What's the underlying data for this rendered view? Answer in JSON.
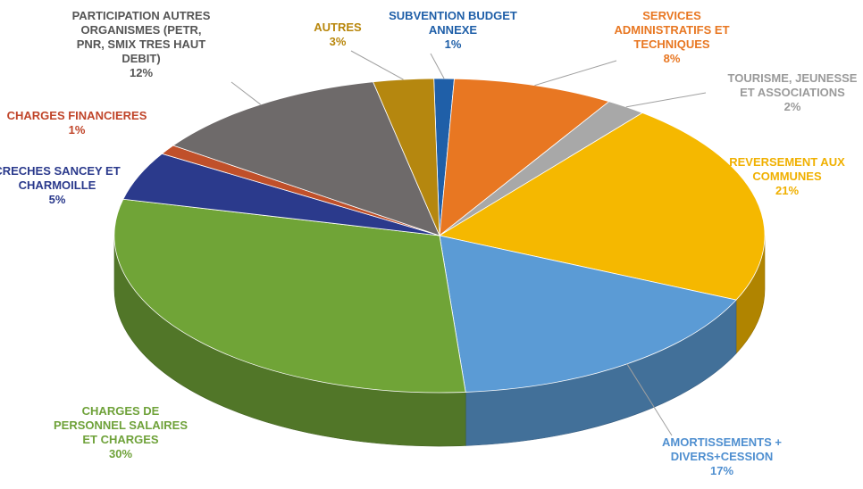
{
  "chart_data": {
    "type": "pie",
    "style": "3d",
    "slices": [
      {
        "label_lines": [
          "SUBVENTION  BUDGET",
          "ANNEXE"
        ],
        "value": 1,
        "value_label": "1%",
        "color": "#1f5fa8",
        "label_color": "#1f5fa8"
      },
      {
        "label_lines": [
          "SERVICES",
          "ADMINISTRATIFS ET",
          "TECHNIQUES"
        ],
        "value": 8,
        "value_label": "8%",
        "color": "#e87722",
        "label_color": "#e87722"
      },
      {
        "label_lines": [
          "TOURISME, JEUNESSE",
          "ET ASSOCIATIONS"
        ],
        "value": 2,
        "value_label": "2%",
        "color": "#a8a8a8",
        "label_color": "#9a9a9a"
      },
      {
        "label_lines": [
          "REVERSEMENT AUX",
          "COMMUNES"
        ],
        "value": 21,
        "value_label": "21%",
        "color": "#f5b800",
        "label_color": "#f0b000"
      },
      {
        "label_lines": [
          "AMORTISSEMENTS +",
          "DIVERS+CESSION"
        ],
        "value": 17,
        "value_label": "17%",
        "color": "#5b9bd5",
        "label_color": "#4f8fd0"
      },
      {
        "label_lines": [
          "CHARGES DE",
          "PERSONNEL SALAIRES",
          "ET CHARGES"
        ],
        "value": 30,
        "value_label": "30%",
        "color": "#70a437",
        "label_color": "#6fa23a"
      },
      {
        "label_lines": [
          "CRECHES SANCEY ET",
          "CHARMOILLE"
        ],
        "value": 5,
        "value_label": "5%",
        "color": "#2b3a8c",
        "label_color": "#2b3a8c"
      },
      {
        "label_lines": [
          "CHARGES FINANCIERES"
        ],
        "value": 1,
        "value_label": "1%",
        "color": "#c0502a",
        "label_color": "#c0452a"
      },
      {
        "label_lines": [
          "PARTICIPATION AUTRES",
          "ORGANISMES (PETR,",
          "PNR, SMIX TRES HAUT",
          "DEBIT)"
        ],
        "value": 12,
        "value_label": "12%",
        "color": "#6e6a6a",
        "label_color": "#555555"
      },
      {
        "label_lines": [
          "AUTRES"
        ],
        "value": 3,
        "value_label": "3%",
        "color": "#b5870f",
        "label_color": "#b8860b"
      }
    ]
  }
}
